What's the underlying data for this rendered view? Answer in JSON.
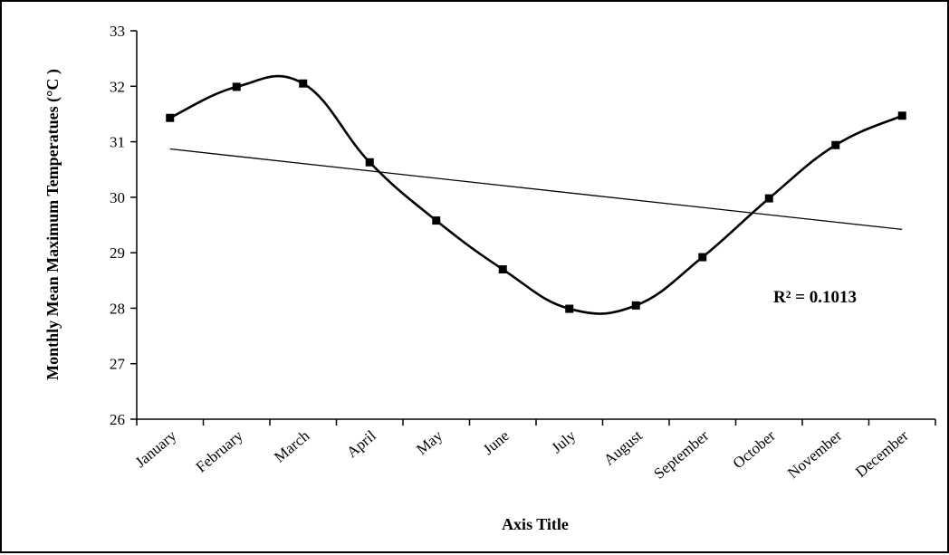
{
  "chart_data": {
    "type": "line",
    "title": "",
    "xlabel": "Axis Title",
    "ylabel": "Monthly Mean Maximum Temperatues (°C )",
    "categories": [
      "January",
      "February",
      "March",
      "April",
      "May",
      "June",
      "July",
      "August",
      "September",
      "October",
      "November",
      "December"
    ],
    "series": [
      {
        "values": [
          31.43,
          31.99,
          32.05,
          30.63,
          29.58,
          28.7,
          27.99,
          28.05,
          28.92,
          29.98,
          30.94,
          31.47
        ]
      }
    ],
    "trendline": {
      "type": "linear",
      "start": 30.87,
      "end": 29.42,
      "label": "R² = 0.1013"
    },
    "ylim": [
      26,
      33
    ],
    "yticks": [
      "26",
      "27",
      "28",
      "29",
      "30",
      "31",
      "32",
      "33"
    ],
    "grid": false,
    "legend": "none",
    "colors": {
      "line": "#000000",
      "marker": "#000000",
      "background": "#ffffff"
    }
  }
}
